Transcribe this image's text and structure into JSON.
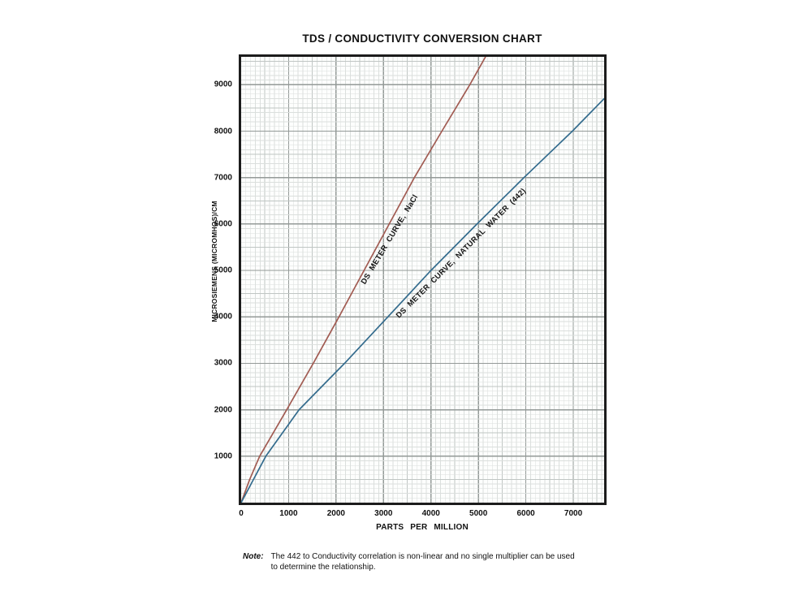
{
  "title": "TDS / CONDUCTIVITY CONVERSION CHART",
  "chart_data": {
    "type": "line",
    "title": "TDS / CONDUCTIVITY CONVERSION CHART",
    "xlabel": "PARTS PER MILLION",
    "ylabel": "MICROSIEMENS (MICROMHOS)/CM",
    "xlim": [
      0,
      7650
    ],
    "ylim": [
      0,
      9600
    ],
    "x_ticks": [
      0,
      1000,
      2000,
      3000,
      4000,
      5000,
      6000,
      7000
    ],
    "y_ticks": [
      1000,
      2000,
      3000,
      4000,
      5000,
      6000,
      7000,
      8000,
      9000
    ],
    "grid": {
      "minor_step": 100,
      "medium_step": 500,
      "major_step": 1000,
      "on": true
    },
    "legend_position": "labels-along-curves",
    "series": [
      {
        "name": "DS METER CURVE, NaCl",
        "color": "#a15b52",
        "points_ppm_microsiemens": [
          [
            0,
            0
          ],
          [
            180,
            500
          ],
          [
            390,
            1000
          ],
          [
            960,
            2000
          ],
          [
            1520,
            3000
          ],
          [
            2060,
            4000
          ],
          [
            2590,
            5000
          ],
          [
            3120,
            6000
          ],
          [
            3650,
            7000
          ],
          [
            4230,
            8000
          ],
          [
            4820,
            9000
          ],
          [
            5150,
            9600
          ]
        ],
        "label": {
          "text": "DS METER CURVE, NaCl",
          "x": 3140,
          "y": 5660,
          "angle_deg": -59
        }
      },
      {
        "name": "DS METER CURVE, NATURAL WATER (442)",
        "color": "#336b8d",
        "points_ppm_microsiemens": [
          [
            0,
            0
          ],
          [
            250,
            480
          ],
          [
            520,
            1000
          ],
          [
            1220,
            2000
          ],
          [
            2180,
            3000
          ],
          [
            3090,
            4000
          ],
          [
            4000,
            5000
          ],
          [
            4970,
            6000
          ],
          [
            5960,
            7000
          ],
          [
            6980,
            8000
          ],
          [
            7650,
            8700
          ]
        ],
        "label": {
          "text": "DS METER CURVE, NATURAL WATER (442)",
          "x": 4630,
          "y": 5370,
          "angle_deg": -45
        }
      }
    ]
  },
  "note": {
    "label": "Note:",
    "lines": [
      "The 442 to Conductivity correlation is non-linear and no single multiplier can be used",
      "to determine the relationship."
    ]
  }
}
